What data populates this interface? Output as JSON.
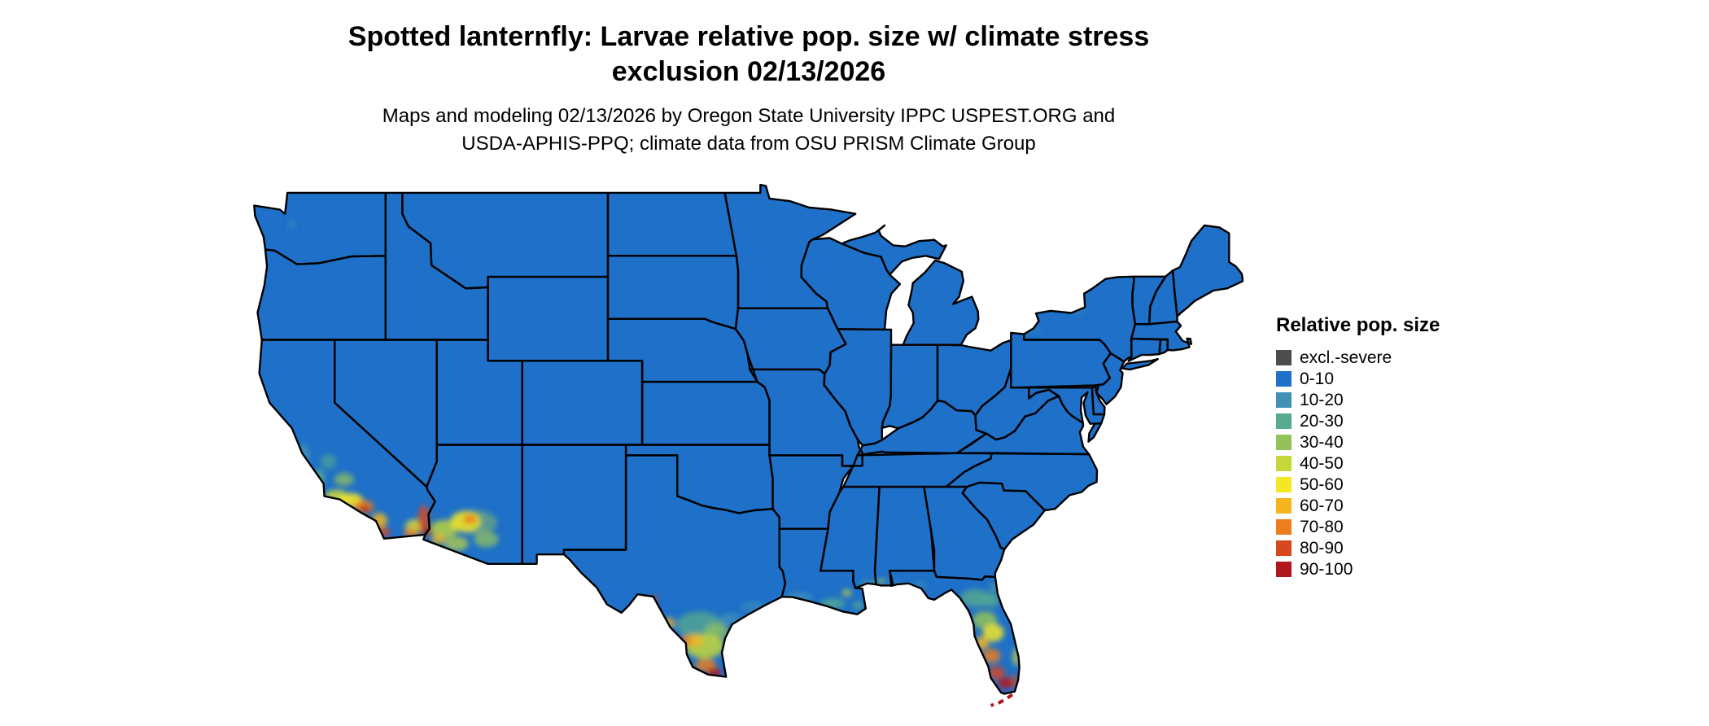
{
  "title": {
    "line1": "Spotted lanternfly: Larvae relative pop. size w/ climate stress",
    "line2": "exclusion 02/13/2026"
  },
  "subtitle": {
    "line1": "Maps and modeling 02/13/2026 by Oregon State University IPPC USPEST.ORG and",
    "line2": "USDA-APHIS-PPQ; climate data from OSU PRISM Climate Group"
  },
  "legend": {
    "title": "Relative pop. size",
    "items": [
      {
        "label": "excl.-severe",
        "color": "#4d4d4d"
      },
      {
        "label": "0-10",
        "color": "#1e70c8"
      },
      {
        "label": "10-20",
        "color": "#4193b6"
      },
      {
        "label": "20-30",
        "color": "#58ab8c"
      },
      {
        "label": "30-40",
        "color": "#93c25b"
      },
      {
        "label": "40-50",
        "color": "#c6d73a"
      },
      {
        "label": "50-60",
        "color": "#f5e626"
      },
      {
        "label": "60-70",
        "color": "#f4b51f"
      },
      {
        "label": "70-80",
        "color": "#ec7e1e"
      },
      {
        "label": "80-90",
        "color": "#d8481f"
      },
      {
        "label": "90-100",
        "color": "#b0171c"
      }
    ]
  },
  "map": {
    "region": "Contiguous United States",
    "dominant_class": "0-10",
    "border_color": "#000000",
    "elevated_regions": [
      "southern California coast",
      "southwestern Arizona / Colorado River valley",
      "southern Texas / Rio Grande Valley",
      "Gulf Coast of Louisiana and Mississippi",
      "Florida peninsula (highest at southern tip)"
    ]
  }
}
